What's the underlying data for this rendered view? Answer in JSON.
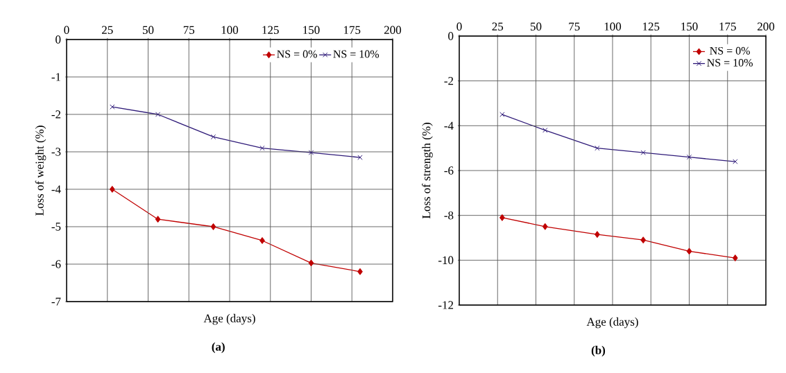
{
  "chart_data": [
    {
      "type": "line",
      "xlabel": "Age (days)",
      "ylabel": "Loss of weight (%)",
      "annotations": [
        "(a)"
      ],
      "x": [
        28,
        56,
        90,
        120,
        150,
        180
      ],
      "xlim": [
        0,
        200
      ],
      "xticks": [
        0,
        25,
        50,
        75,
        100,
        125,
        150,
        175,
        200
      ],
      "ylim": [
        -7,
        0
      ],
      "yticks": [
        -7,
        -6,
        -5,
        -4,
        -3,
        -2,
        -1,
        0
      ],
      "grid": true,
      "legend": "top right",
      "series": [
        {
          "name": "NS = 0%",
          "color": "#c00000",
          "marker": "diamond",
          "values": [
            -4.0,
            -4.8,
            -5.0,
            -5.37,
            -5.97,
            -6.2
          ]
        },
        {
          "name": "NS = 10%",
          "color": "#2e1a78",
          "marker": "cross",
          "values": [
            -1.8,
            -2.0,
            -2.6,
            -2.9,
            -3.02,
            -3.15
          ]
        }
      ]
    },
    {
      "type": "line",
      "xlabel": "Age (days)",
      "ylabel": "Loss of strength (%)",
      "annotations": [
        "(b)"
      ],
      "x": [
        28,
        56,
        90,
        120,
        150,
        180
      ],
      "xlim": [
        0,
        200
      ],
      "xticks": [
        0,
        25,
        50,
        75,
        100,
        125,
        150,
        175,
        200
      ],
      "ylim": [
        -12,
        0
      ],
      "yticks": [
        -12,
        -10,
        -8,
        -6,
        -4,
        -2,
        0
      ],
      "grid": true,
      "legend": "top right",
      "series": [
        {
          "name": "NS = 0%",
          "color": "#c00000",
          "marker": "diamond",
          "values": [
            -8.1,
            -8.5,
            -8.85,
            -9.1,
            -9.6,
            -9.9
          ]
        },
        {
          "name": "NS = 10%",
          "color": "#2e1a78",
          "marker": "cross",
          "values": [
            -3.5,
            -4.2,
            -5.0,
            -5.2,
            -5.4,
            -5.6
          ]
        }
      ]
    }
  ]
}
